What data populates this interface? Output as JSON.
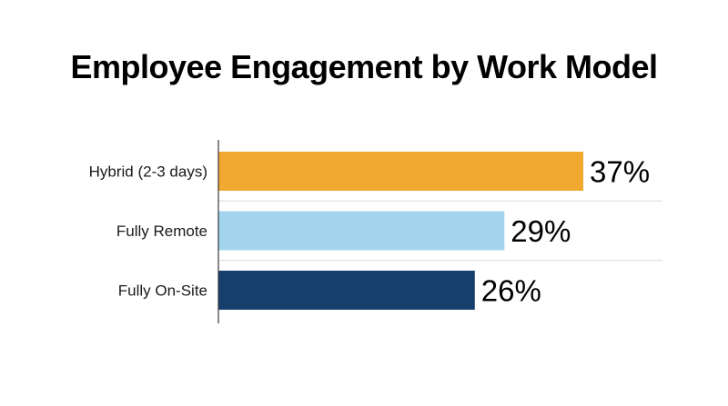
{
  "chart_data": {
    "type": "bar",
    "orientation": "horizontal",
    "title": "Employee Engagement by Work Model",
    "categories": [
      "Hybrid (2-3 days)",
      "Fully Remote",
      "Fully On-Site"
    ],
    "values": [
      37,
      29,
      26
    ],
    "value_labels": [
      "37%",
      "29%",
      "26%"
    ],
    "colors": [
      "#F0A830",
      "#A3D4EE",
      "#173F6E"
    ],
    "unit": "%",
    "xlim": [
      0,
      42
    ],
    "grid": "horizontal separators between bars",
    "legend": "none"
  }
}
